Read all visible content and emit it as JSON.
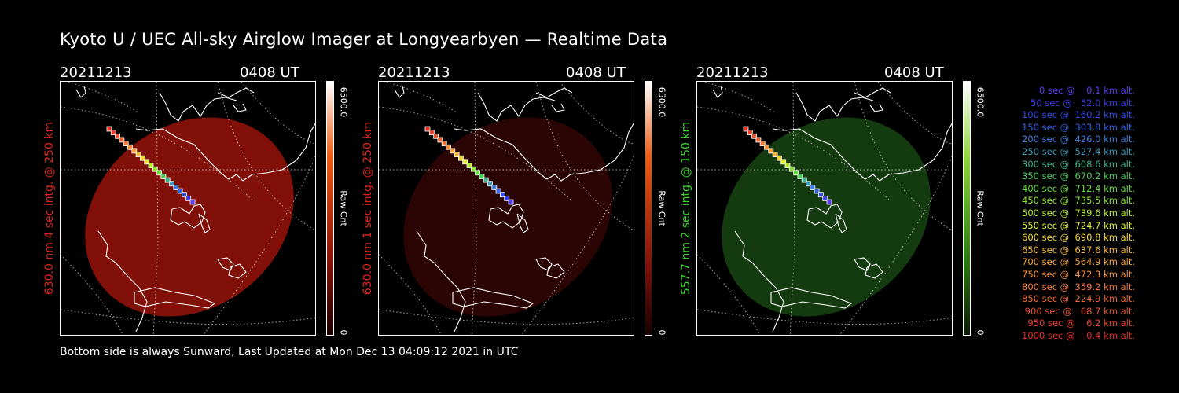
{
  "title": "Kyoto U / UEC All-sky Airglow Imager at Longyearbyen — Realtime Data",
  "panels": [
    {
      "date": "20211213",
      "time": "0408 UT",
      "ylabel": "630.0 nm 4 sec intg. @ 250 km",
      "ylabel_color": "#e02418",
      "cbar_max": "6500.0",
      "cbar_min": "0",
      "cbar_unit": "Raw Cnt",
      "glow_color": "#a5140c",
      "glow_opacity": 0.78
    },
    {
      "date": "20211213",
      "time": "0408 UT",
      "ylabel": "630.0 nm 1 sec intg. @ 250 km",
      "ylabel_color": "#e02418",
      "cbar_max": "6500.0",
      "cbar_min": "0",
      "cbar_unit": "Raw Cnt",
      "glow_color": "#3a0605",
      "glow_opacity": 0.75
    },
    {
      "date": "20211213",
      "time": "0408 UT",
      "ylabel": "557.7 nm 2 sec intg. @ 150 km",
      "ylabel_color": "#3bd92b",
      "cbar_max": "6500.0",
      "cbar_min": "0",
      "cbar_unit": "Raw Cnt",
      "glow_color": "#1b4d14",
      "glow_opacity": 0.75
    }
  ],
  "legend": [
    {
      "text": "   0 sec @    0.1 km alt.",
      "color": "#5a3cf0"
    },
    {
      "text": "  50 sec @   52.0 km alt.",
      "color": "#3a3ae8"
    },
    {
      "text": " 100 sec @  160.2 km alt.",
      "color": "#2f4ee8"
    },
    {
      "text": " 150 sec @  303.8 km alt.",
      "color": "#2f62e6"
    },
    {
      "text": " 200 sec @  426.0 km alt.",
      "color": "#3c7fe0"
    },
    {
      "text": " 250 sec @  527.4 km alt.",
      "color": "#3a9ab8"
    },
    {
      "text": " 300 sec @  608.6 km alt.",
      "color": "#3ab48a"
    },
    {
      "text": " 350 sec @  670.2 km alt.",
      "color": "#44cc56"
    },
    {
      "text": " 400 sec @  712.4 km alt.",
      "color": "#62dc3a"
    },
    {
      "text": " 450 sec @  735.5 km alt.",
      "color": "#8ae430"
    },
    {
      "text": " 500 sec @  739.6 km alt.",
      "color": "#b4ea2c"
    },
    {
      "text": " 550 sec @  724.7 km alt.",
      "color": "#e2ee2c"
    },
    {
      "text": " 600 sec @  690.8 km alt.",
      "color": "#f5d630"
    },
    {
      "text": " 650 sec @  637.6 km alt.",
      "color": "#f7b634"
    },
    {
      "text": " 700 sec @  564.9 km alt.",
      "color": "#f6a236"
    },
    {
      "text": " 750 sec @  472.3 km alt.",
      "color": "#f48e36"
    },
    {
      "text": " 800 sec @  359.2 km alt.",
      "color": "#f07834"
    },
    {
      "text": " 850 sec @  224.9 km alt.",
      "color": "#ee6632"
    },
    {
      "text": " 900 sec @   68.7 km alt.",
      "color": "#ea5230"
    },
    {
      "text": " 950 sec @    6.2 km alt.",
      "color": "#e8402c"
    },
    {
      "text": "1000 sec @    0.4 km alt.",
      "color": "#e42e26"
    }
  ],
  "footer": "Bottom side is always Sunward, Last Updated at Mon Dec 13 04:09:12 2021 in UTC"
}
